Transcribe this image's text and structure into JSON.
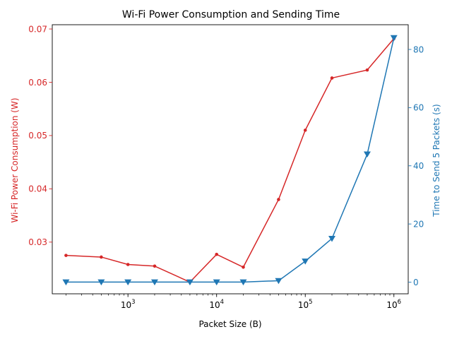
{
  "chart_data": {
    "type": "line",
    "title": "Wi-Fi Power Consumption and Sending Time",
    "xlabel": "Packet Size (B)",
    "xscale": "log",
    "xlim": [
      140,
      1450000
    ],
    "xticks": [
      {
        "value": 1000,
        "base": "10",
        "exp": "3"
      },
      {
        "value": 10000,
        "base": "10",
        "exp": "4"
      },
      {
        "value": 100000,
        "base": "10",
        "exp": "5"
      },
      {
        "value": 1000000,
        "base": "10",
        "exp": "6"
      }
    ],
    "grid": false,
    "left_axis": {
      "label": "Wi-Fi Power Consumption (W)",
      "color": "#d62728",
      "ylim": [
        0.0203,
        0.0708
      ],
      "ticks": [
        {
          "value": 0.03,
          "label": "0.03"
        },
        {
          "value": 0.04,
          "label": "0.04"
        },
        {
          "value": 0.05,
          "label": "0.05"
        },
        {
          "value": 0.06,
          "label": "0.06"
        },
        {
          "value": 0.07,
          "label": "0.07"
        }
      ]
    },
    "right_axis": {
      "label": "Time to Send 5 Packets (s)",
      "color": "#1f77b4",
      "ylim": [
        -4.0,
        88.5
      ],
      "ticks": [
        {
          "value": 0,
          "label": "0"
        },
        {
          "value": 20,
          "label": "20"
        },
        {
          "value": 40,
          "label": "40"
        },
        {
          "value": 60,
          "label": "60"
        },
        {
          "value": 80,
          "label": "80"
        }
      ]
    },
    "x": [
      200,
      500,
      1000,
      2000,
      5000,
      10000,
      20000,
      50000,
      100000,
      200000,
      500000,
      1000000
    ],
    "series": [
      {
        "axis": "left",
        "color": "#d62728",
        "marker": "circle",
        "values": [
          0.0275,
          0.0272,
          0.0258,
          0.0255,
          0.0225,
          0.0277,
          0.0253,
          0.038,
          0.051,
          0.0608,
          0.0623,
          0.0682
        ]
      },
      {
        "axis": "right",
        "color": "#1f77b4",
        "marker": "triangle-down",
        "values": [
          0.05,
          0.05,
          0.05,
          0.05,
          0.05,
          0.05,
          0.05,
          0.5,
          7.2,
          15.0,
          44.0,
          84.0
        ]
      }
    ]
  }
}
